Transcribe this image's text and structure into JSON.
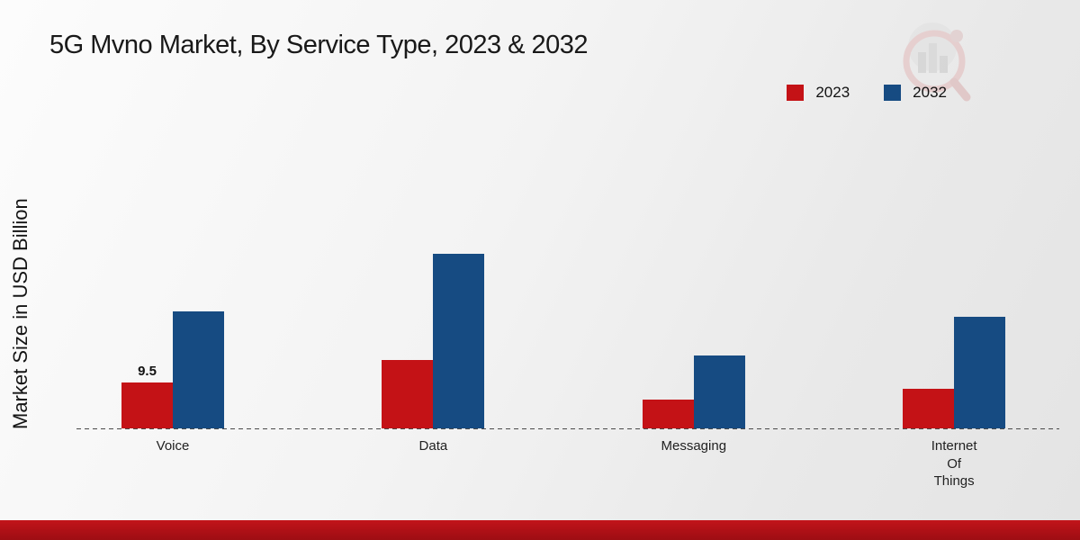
{
  "header": {
    "title": "5G Mvno Market, By Service Type, 2023 & 2032"
  },
  "y_axis": {
    "label": "Market Size in USD Billion"
  },
  "legend": {
    "items": [
      {
        "label": "2023",
        "color": "#c41216"
      },
      {
        "label": "2032",
        "color": "#164b82"
      }
    ]
  },
  "chart_data": {
    "type": "bar",
    "title": "5G Mvno Market, By Service Type, 2023 & 2032",
    "xlabel": "",
    "ylabel": "Market Size in USD Billion",
    "categories": [
      "Voice",
      "Data",
      "Messaging",
      "Internet Of Things"
    ],
    "series": [
      {
        "name": "2023",
        "color": "#c41216",
        "values": [
          9.5,
          14,
          6,
          8.2
        ],
        "data_labels": [
          "9.5",
          "",
          "",
          ""
        ]
      },
      {
        "name": "2032",
        "color": "#164b82",
        "values": [
          24,
          36,
          15,
          23
        ],
        "data_labels": [
          "",
          "",
          "",
          ""
        ]
      }
    ],
    "ylim": [
      0,
      40
    ],
    "grid": false,
    "legend_position": "top-right",
    "baseline_style": "dashed"
  },
  "colors": {
    "accent_red": "#c41216",
    "accent_blue": "#164b82",
    "footer_stripe": "#a80f15",
    "background_start": "#fcfcfc",
    "background_end": "#e4e4e4"
  }
}
